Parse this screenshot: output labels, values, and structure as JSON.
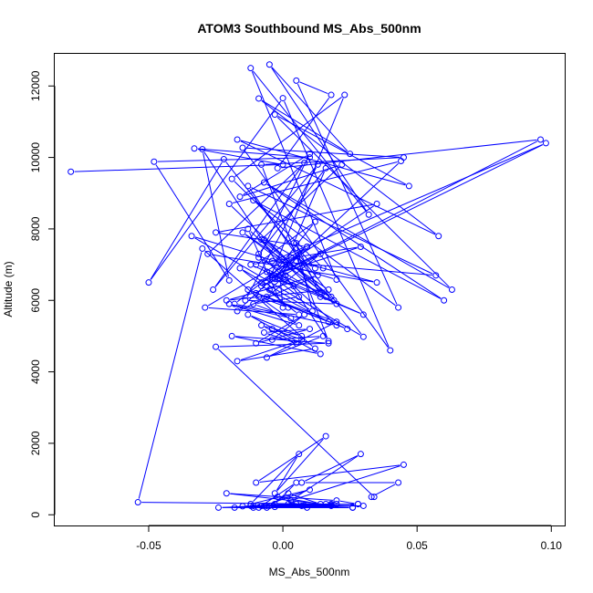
{
  "chart_data": {
    "type": "scatter",
    "title": "ATOM3 Southbound MS_Abs_500nm",
    "xlabel": "MS_Abs_500nm",
    "ylabel": "Altitude (m)",
    "xlim": [
      -0.085,
      0.105
    ],
    "ylim": [
      -300,
      12900
    ],
    "x_ticks": [
      -0.05,
      0.0,
      0.05,
      0.1
    ],
    "x_tick_labels": [
      "-0.05",
      "0.00",
      "0.05",
      "0.10"
    ],
    "y_ticks": [
      0,
      2000,
      4000,
      6000,
      8000,
      10000,
      12000
    ],
    "y_tick_labels": [
      "0",
      "2000",
      "4000",
      "6000",
      "8000",
      "10000",
      "12000"
    ],
    "grid": false,
    "legend": "none",
    "color": "#0000ff",
    "marker": "open-circle",
    "connected": true,
    "series": [
      {
        "x": [
          -0.079,
          0.0,
          -0.033,
          0.01,
          -0.048,
          -0.02,
          -0.03,
          0.017,
          -0.008,
          0.045,
          -0.015,
          0.04,
          0.0,
          -0.05,
          -0.022,
          0.03,
          -0.034,
          0.02,
          -0.012,
          0.032,
          -0.005,
          0.025,
          -0.009,
          0.058,
          -0.017,
          0.047,
          -0.003,
          0.063,
          -0.007,
          0.06,
          -0.011,
          0.043,
          0.005,
          0.018,
          -0.002,
          0.096,
          -0.008,
          0.098,
          -0.004,
          0.057,
          -0.013,
          0.016,
          -0.02,
          0.044,
          -0.006,
          0.023,
          -0.019,
          0.015,
          0.005,
          0.035,
          -0.028,
          0.008,
          -0.026,
          0.013,
          -0.014,
          0.02,
          -0.009,
          0.01,
          -0.016,
          0.022,
          -0.008,
          0.018,
          -0.01,
          0.012,
          -0.004,
          0.029,
          -0.012,
          0.03,
          -0.002,
          0.014,
          -0.006,
          0.024,
          -0.013,
          0.035,
          -0.025,
          0.009,
          -0.018,
          0.02,
          -0.009,
          0.016,
          0.004,
          0.012,
          -0.007,
          0.019,
          -0.015,
          0.017,
          -0.021,
          0.013,
          -0.017,
          0.009,
          -0.029,
          0.006,
          -0.016,
          0.011,
          0.005,
          0.014,
          -0.013,
          0.0,
          -0.001,
          0.003,
          -0.003,
          0.004,
          -0.006,
          0.006,
          -0.011,
          0.003,
          -0.02,
          0.006,
          -0.009,
          0.002,
          -0.005,
          0.001,
          -0.008,
          0.017,
          -0.01,
          0.02,
          -0.006,
          0.015,
          -0.004,
          0.008,
          -0.01,
          0.01,
          -0.007,
          0.005,
          -0.008,
          0.007,
          -0.013,
          0.014,
          -0.019,
          0.017,
          -0.025,
          0.034,
          0.033,
          0.043,
          0.007,
          0.029,
          0.003,
          0.045,
          -0.01,
          0.016,
          -0.003,
          0.006,
          -0.012,
          0.01,
          -0.009,
          0.005,
          -0.003,
          0.016,
          -0.018,
          0.005,
          -0.024,
          0.026,
          -0.007,
          0.03,
          -0.003,
          0.028,
          -0.011,
          0.008,
          -0.015,
          0.018,
          -0.021,
          0.02,
          0.028,
          -0.005,
          0.018,
          -0.012,
          0.018,
          -0.006,
          0.002,
          0.014,
          -0.002,
          0.007,
          -0.008,
          0.002,
          -0.011,
          0.026,
          -0.008,
          0.009,
          -0.006,
          0.02,
          -0.054,
          -0.03,
          0.012,
          -0.017,
          0.007,
          -0.004
        ],
        "y": [
          9600,
          9800,
          10250,
          10000,
          9880,
          6560,
          10230,
          4860,
          9800,
          10000,
          10270,
          4600,
          11660,
          6500,
          9950,
          4980,
          7800,
          6580,
          12500,
          8400,
          12600,
          10100,
          11650,
          7800,
          10500,
          9200,
          11200,
          6300,
          9300,
          6000,
          8800,
          5800,
          12150,
          11750,
          9700,
          10500,
          6500,
          10400,
          7100,
          6700,
          9200,
          6100,
          8700,
          9900,
          6400,
          11750,
          9400,
          6900,
          7100,
          6500,
          7300,
          9850,
          6300,
          9800,
          6000,
          5900,
          7200,
          10100,
          8900,
          9800,
          7700,
          6100,
          7000,
          8200,
          6700,
          7500,
          7000,
          5600,
          6600,
          7300,
          6100,
          5200,
          6300,
          8700,
          7900,
          7500,
          5900,
          5300,
          7300,
          9700,
          7600,
          6900,
          7700,
          6000,
          7900,
          6300,
          6000,
          6700,
          5700,
          7500,
          5800,
          5600,
          6900,
          5700,
          7600,
          6100,
          8000,
          5800,
          6600,
          7200,
          6600,
          6400,
          6800,
          6100,
          5900,
          5500,
          5900,
          5300,
          6100,
          5800,
          6300,
          6700,
          6400,
          5400,
          6200,
          5400,
          4400,
          5000,
          4900,
          5600,
          4800,
          5200,
          5100,
          4800,
          5300,
          5000,
          5600,
          4500,
          5000,
          4800,
          4700,
          500,
          500,
          900,
          900,
          1700,
          400,
          1400,
          900,
          2200,
          600,
          1700,
          300,
          700,
          200,
          900,
          300,
          300,
          200,
          300,
          200,
          200,
          250,
          250,
          220,
          300,
          250,
          260,
          240,
          270,
          600,
          400,
          300,
          250,
          250,
          250,
          300,
          200,
          600,
          300,
          500,
          250,
          250,
          300,
          200,
          200,
          250,
          200,
          250,
          300,
          350,
          7450,
          4650,
          4300,
          4900,
          5200
        ]
      }
    ]
  }
}
